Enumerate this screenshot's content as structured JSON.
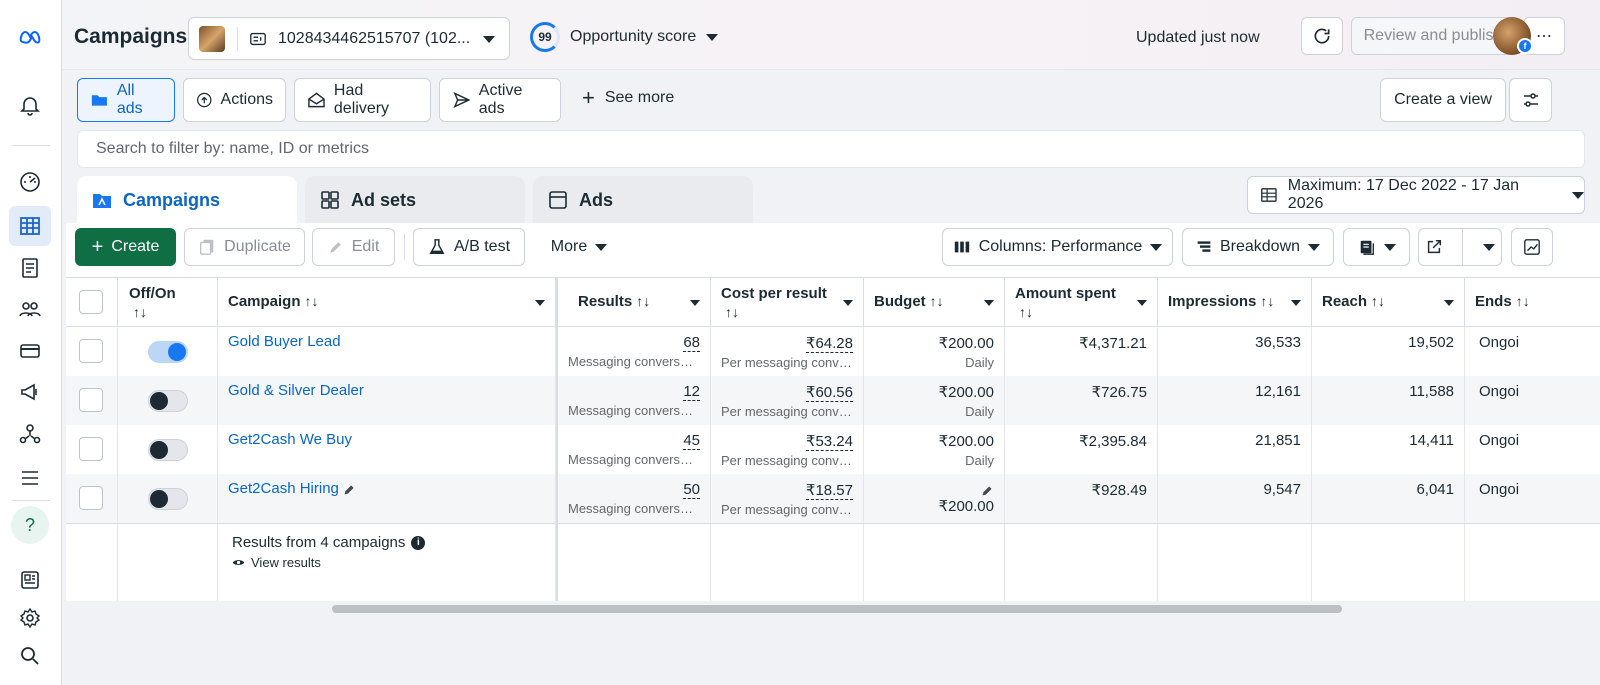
{
  "header": {
    "title": "Campaigns",
    "account_id": "1028434462515707 (102...",
    "opportunity_score": "99",
    "opportunity_label": "Opportunity score",
    "updated_text": "Updated just now",
    "review_publish_label": "Review and publish",
    "more_label": "⋯"
  },
  "rail": {
    "items": [
      "meta-logo",
      "notifications",
      "dashboard",
      "campaigns-table",
      "pages",
      "audiences",
      "billing",
      "ads-manager",
      "business-tools",
      "all-tools",
      "help",
      "news",
      "settings",
      "search"
    ]
  },
  "filters": {
    "all_ads": "All ads",
    "actions": "Actions",
    "had_delivery": "Had delivery",
    "active_ads": "Active ads",
    "see_more": "See more",
    "create_view": "Create a view"
  },
  "search": {
    "placeholder": "Search to filter by: name, ID or metrics"
  },
  "tabs": {
    "campaigns": "Campaigns",
    "ad_sets": "Ad sets",
    "ads": "Ads"
  },
  "date_range": "Maximum: 17 Dec 2022 - 17 Jan 2026",
  "toolbar": {
    "create": "Create",
    "duplicate": "Duplicate",
    "edit": "Edit",
    "ab_test": "A/B test",
    "more": "More",
    "columns": "Columns: Performance",
    "breakdown": "Breakdown"
  },
  "table": {
    "headers": {
      "offon": "Off/On",
      "campaign": "Campaign",
      "results": "Results",
      "cost_per_result": "Cost per result",
      "budget": "Budget",
      "amount_spent": "Amount spent",
      "impressions": "Impressions",
      "reach": "Reach",
      "ends": "Ends"
    },
    "sort_glyph": "↑↓",
    "rows": [
      {
        "on": true,
        "campaign": "Gold Buyer Lead",
        "results": "68",
        "results_sub": "Messaging conversat...",
        "cpr": "₹64.28",
        "cpr_sub": "Per messaging conve...",
        "budget": "₹200.00",
        "budget_sub": "Daily",
        "spent": "₹4,371.21",
        "impressions": "36,533",
        "reach": "19,502",
        "ends": "Ongoi"
      },
      {
        "on": false,
        "campaign": "Gold & Silver Dealer",
        "results": "12",
        "results_sub": "Messaging conversat...",
        "cpr": "₹60.56",
        "cpr_sub": "Per messaging conve...",
        "budget": "₹200.00",
        "budget_sub": "Daily",
        "spent": "₹726.75",
        "impressions": "12,161",
        "reach": "11,588",
        "ends": "Ongoi"
      },
      {
        "on": false,
        "campaign": "Get2Cash We Buy",
        "results": "45",
        "results_sub": "Messaging conversat...",
        "cpr": "₹53.24",
        "cpr_sub": "Per messaging conve...",
        "budget": "₹200.00",
        "budget_sub": "Daily",
        "spent": "₹2,395.84",
        "impressions": "21,851",
        "reach": "14,411",
        "ends": "Ongoi"
      },
      {
        "on": false,
        "campaign": "Get2Cash Hiring",
        "results": "50",
        "results_sub": "Messaging conversat...",
        "cpr": "₹18.57",
        "cpr_sub": "Per messaging conve...",
        "budget": "₹200.00",
        "budget_sub": "",
        "spent": "₹928.49",
        "impressions": "9,547",
        "reach": "6,041",
        "ends": "Ongoi"
      }
    ],
    "summary": "Results from 4 campaigns",
    "view_results": "View results"
  },
  "colors": {
    "accent": "#1877f2",
    "create_green": "#106e44",
    "link": "#0a66c2"
  }
}
